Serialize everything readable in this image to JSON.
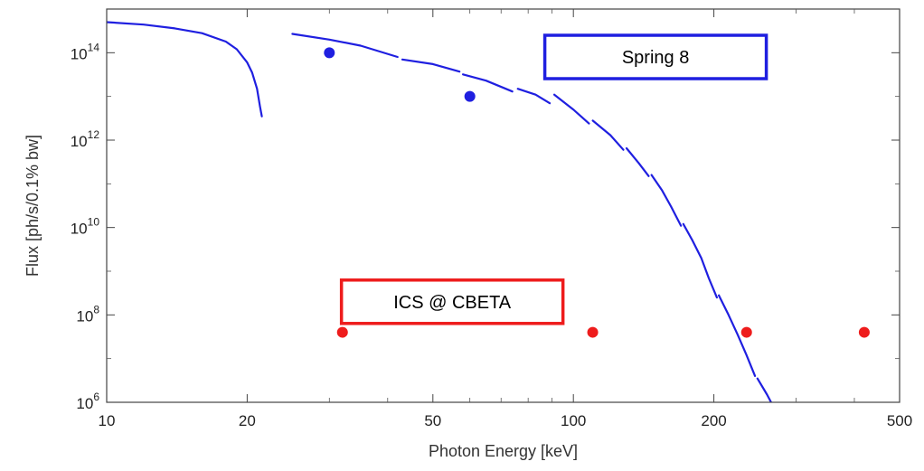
{
  "chart_data": {
    "type": "scatter",
    "xlabel": "Photon Energy [keV]",
    "ylabel": "Flux [ph/s/0.1% bw]",
    "x_scale": "log",
    "y_scale": "log",
    "xlim": [
      10,
      500
    ],
    "ylim": [
      1000000.0,
      1000000000000000.0
    ],
    "x_ticks": [
      10,
      20,
      50,
      100,
      200,
      500
    ],
    "x_tick_labels": [
      "10",
      "20",
      "50",
      "100",
      "200",
      "500"
    ],
    "y_ticks": [
      1000000.0,
      100000000.0,
      10000000000.0,
      1000000000000.0,
      100000000000000.0
    ],
    "y_tick_labels": [
      {
        "base": "10",
        "exp": "6"
      },
      {
        "base": "10",
        "exp": "8"
      },
      {
        "base": "10",
        "exp": "10"
      },
      {
        "base": "10",
        "exp": "12"
      },
      {
        "base": "10",
        "exp": "14"
      }
    ],
    "grid": false,
    "colors": {
      "spring8": "#1f1fe0",
      "ics": "#ee1c1c",
      "frame": "#444444"
    },
    "series": [
      {
        "name": "Spring 8",
        "kind": "curve",
        "color": "#1f1fe0",
        "segments": [
          {
            "x": [
              10,
              12,
              14,
              16,
              18,
              19,
              20,
              20.5,
              21,
              21.3,
              21.5
            ],
            "y": [
              500000000000000.0,
              440000000000000.0,
              360000000000000.0,
              280000000000000.0,
              180000000000000.0,
              120000000000000.0,
              60000000000000.0,
              35000000000000.0,
              15000000000000.0,
              6000000000000.0,
              3500000000000.0
            ]
          },
          {
            "x": [
              25,
              30,
              35,
              42
            ],
            "y": [
              270000000000000.0,
              200000000000000.0,
              145000000000000.0,
              80000000000000.0
            ]
          },
          {
            "x": [
              43,
              50,
              57
            ],
            "y": [
              70000000000000.0,
              55000000000000.0,
              37000000000000.0
            ]
          },
          {
            "x": [
              58,
              65,
              74
            ],
            "y": [
              32000000000000.0,
              23000000000000.0,
              13000000000000.0
            ]
          },
          {
            "x": [
              76,
              83,
              89
            ],
            "y": [
              15000000000000.0,
              11000000000000.0,
              7000000000000.0
            ]
          },
          {
            "x": [
              91,
              100,
              108
            ],
            "y": [
              11000000000000.0,
              5000000000000.0,
              2400000000000.0
            ]
          },
          {
            "x": [
              110,
              120,
              128
            ],
            "y": [
              2800000000000.0,
              1300000000000.0,
              600000000000.0
            ]
          },
          {
            "x": [
              130,
              138,
              145
            ],
            "y": [
              650000000000.0,
              300000000000.0,
              150000000000.0
            ]
          },
          {
            "x": [
              147,
              155,
              162,
              170
            ],
            "y": [
              160000000000.0,
              70000000000.0,
              30000000000.0,
              11000000000.0
            ]
          },
          {
            "x": [
              172,
              180,
              188,
              195,
              203
            ],
            "y": [
              12000000000.0,
              5000000000.0,
              2000000000.0,
              700000000.0,
              250000000.0
            ]
          },
          {
            "x": [
              205,
              215,
              225,
              235,
              245
            ],
            "y": [
              280000000.0,
              100000000.0,
              35000000.0,
              12000000.0,
              4000000.0
            ]
          },
          {
            "x": [
              248,
              260,
              272,
              285,
              300
            ],
            "y": [
              3500000.0,
              1500000.0,
              600000.0,
              250000.0,
              100000.0
            ]
          }
        ],
        "points": [
          {
            "x": 30,
            "y": 100000000000000.0
          },
          {
            "x": 60,
            "y": 10000000000000.0
          }
        ]
      },
      {
        "name": "ICS @ CBETA",
        "kind": "points",
        "color": "#ee1c1c",
        "points": [
          {
            "x": 32,
            "y": 40000000.0
          },
          {
            "x": 110,
            "y": 40000000.0
          },
          {
            "x": 235,
            "y": 40000000.0
          },
          {
            "x": 420,
            "y": 40000000.0
          }
        ]
      }
    ],
    "annotations": [
      {
        "text": "Spring 8",
        "color": "#1f1fe0",
        "x": 150,
        "y": 80000000000000.0
      },
      {
        "text": "ICS @ CBETA",
        "color": "#ee1c1c",
        "x": 55,
        "y": 200000000.0
      }
    ]
  }
}
